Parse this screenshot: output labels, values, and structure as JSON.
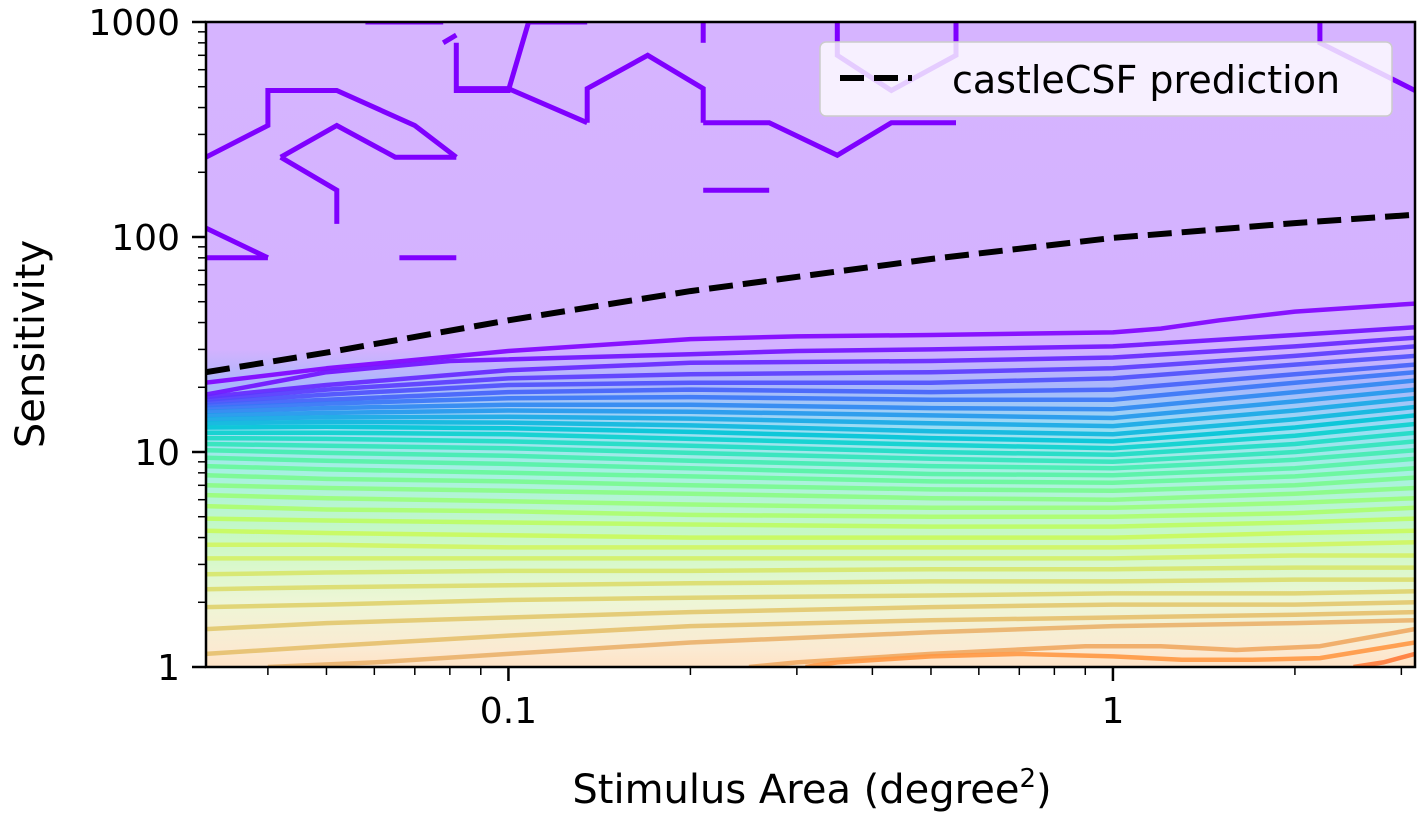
{
  "chart_data": {
    "type": "contour",
    "xlabel_main": "Stimulus Area (degree",
    "xlabel_sup": "2",
    "xlabel_close": ")",
    "ylabel": "Sensitivity",
    "xscale": "log",
    "yscale": "log",
    "xlim": [
      0.0316,
      3.16
    ],
    "ylim": [
      1,
      1000
    ],
    "x_ticks": [
      {
        "value": 0.1,
        "label": "0.1"
      },
      {
        "value": 1,
        "label": "1"
      }
    ],
    "y_ticks": [
      {
        "value": 1,
        "label": "1"
      },
      {
        "value": 10,
        "label": "10"
      },
      {
        "value": 100,
        "label": "100"
      },
      {
        "value": 1000,
        "label": "1000"
      }
    ],
    "legend": {
      "position": "top-right",
      "entries": [
        {
          "label": "castleCSF prediction",
          "style": "dashed",
          "color": "#000000"
        }
      ]
    },
    "colormap": "rainbow",
    "background_fill": [
      {
        "y": 1000,
        "color": "#d6b4ff"
      },
      {
        "y": 30,
        "color": "#d3b2ff"
      },
      {
        "y": 20,
        "color": "#a8b7fb"
      },
      {
        "y": 13,
        "color": "#99ddf4"
      },
      {
        "y": 8,
        "color": "#a6f1e1"
      },
      {
        "y": 4,
        "color": "#c9f9c3"
      },
      {
        "y": 2,
        "color": "#eef6d6"
      },
      {
        "y": 1.2,
        "color": "#fbead2"
      },
      {
        "y": 1,
        "color": "#ffe3c6"
      }
    ],
    "series": [
      {
        "name": "castleCSF prediction",
        "style": "dashed",
        "x": [
          0.0316,
          0.05,
          0.1,
          0.2,
          0.5,
          1,
          2,
          3.16
        ],
        "y": [
          23.5,
          29,
          41,
          56,
          79,
          99,
          116,
          127
        ]
      }
    ],
    "contours": [
      {
        "level": 1,
        "color": "#7f00ff",
        "x": [
          0.0316,
          0.05,
          0.1,
          0.2,
          0.3,
          0.5,
          1,
          1.2,
          1.5,
          2,
          3.16
        ],
        "y": [
          21,
          24.5,
          29.5,
          33.5,
          34.5,
          35,
          36,
          37.5,
          41,
          45,
          49
        ]
      },
      {
        "level": 2,
        "color": "#7010ff",
        "x": [
          0.0316,
          0.05,
          0.08,
          0.2,
          0.3,
          0.5,
          1,
          2,
          3.16
        ],
        "y": [
          18.5,
          23.5,
          26.5,
          28.5,
          29.5,
          30,
          31,
          35,
          38
        ]
      },
      {
        "level": 3,
        "color": "#6526ff",
        "x": [
          0.0316,
          0.05,
          0.1,
          0.2,
          0.5,
          1,
          2,
          3.16
        ],
        "y": [
          18,
          20.5,
          24,
          26,
          26.5,
          27.5,
          31,
          34
        ]
      },
      {
        "level": 4,
        "color": "#5a3bfe",
        "x": [
          0.0316,
          0.05,
          0.1,
          0.2,
          0.5,
          1,
          2,
          3.16
        ],
        "y": [
          17.5,
          19.5,
          22,
          23,
          23.5,
          24.5,
          28,
          31
        ]
      },
      {
        "level": 5,
        "color": "#4e4ffc",
        "x": [
          0.0316,
          0.05,
          0.1,
          0.2,
          0.5,
          1,
          2,
          3.16
        ],
        "y": [
          17,
          18.5,
          20.5,
          21,
          21,
          22,
          25.5,
          28
        ]
      },
      {
        "level": 6,
        "color": "#4462fa",
        "x": [
          0.0316,
          0.05,
          0.1,
          0.2,
          0.5,
          1,
          2,
          3.16
        ],
        "y": [
          16.5,
          17.5,
          19,
          19.5,
          19,
          19.5,
          23,
          25.5
        ]
      },
      {
        "level": 7,
        "color": "#3875f6",
        "x": [
          0.0316,
          0.05,
          0.1,
          0.2,
          0.5,
          1,
          2,
          3.16
        ],
        "y": [
          16,
          16.8,
          17.8,
          18,
          17.5,
          17.5,
          21,
          23.5
        ]
      },
      {
        "level": 8,
        "color": "#2d87f1",
        "x": [
          0.0316,
          0.05,
          0.1,
          0.2,
          0.5,
          1,
          2,
          3.16
        ],
        "y": [
          15.4,
          16,
          16.6,
          16.6,
          16,
          15.8,
          19,
          21.5
        ]
      },
      {
        "level": 9,
        "color": "#2298ec",
        "x": [
          0.0316,
          0.05,
          0.1,
          0.2,
          0.5,
          1,
          2,
          3.16
        ],
        "y": [
          14.8,
          15.2,
          15.6,
          15.4,
          14.8,
          14.4,
          17.2,
          19.5
        ]
      },
      {
        "level": 10,
        "color": "#17a8e5",
        "x": [
          0.0316,
          0.05,
          0.1,
          0.2,
          0.5,
          1,
          2,
          3.16
        ],
        "y": [
          14.2,
          14.5,
          14.6,
          14.3,
          13.6,
          13.2,
          15.6,
          17.8
        ]
      },
      {
        "level": 11,
        "color": "#0cb7de",
        "x": [
          0.0316,
          0.05,
          0.1,
          0.2,
          0.5,
          1,
          2,
          3.16
        ],
        "y": [
          13.6,
          13.8,
          13.7,
          13.3,
          12.5,
          12.1,
          14.2,
          16.2
        ]
      },
      {
        "level": 12,
        "color": "#00c4d6",
        "x": [
          0.0316,
          0.05,
          0.1,
          0.2,
          0.5,
          1,
          2,
          3.16
        ],
        "y": [
          13,
          13.1,
          12.9,
          12.4,
          11.6,
          11.2,
          13,
          14.8
        ]
      },
      {
        "level": 13,
        "color": "#0ad0ce",
        "x": [
          0.0316,
          0.05,
          0.1,
          0.2,
          0.5,
          1,
          2,
          3.16
        ],
        "y": [
          12.3,
          12.3,
          12.1,
          11.5,
          10.8,
          10.4,
          11.9,
          13.5
        ]
      },
      {
        "level": 14,
        "color": "#1ddbc4",
        "x": [
          0.0316,
          0.05,
          0.1,
          0.2,
          0.5,
          1,
          2,
          3.16
        ],
        "y": [
          11.6,
          11.5,
          11.2,
          10.7,
          10,
          9.7,
          10.9,
          12.3
        ]
      },
      {
        "level": 15,
        "color": "#30e4ba",
        "x": [
          0.0316,
          0.05,
          0.1,
          0.2,
          0.5,
          1,
          2,
          3.16
        ],
        "y": [
          10.9,
          10.7,
          10.4,
          9.9,
          9.3,
          9,
          10,
          11.2
        ]
      },
      {
        "level": 16,
        "color": "#42ecb0",
        "x": [
          0.0316,
          0.05,
          0.1,
          0.2,
          0.5,
          1,
          2,
          3.16
        ],
        "y": [
          10.2,
          9.9,
          9.6,
          9.1,
          8.6,
          8.4,
          9.2,
          10.2
        ]
      },
      {
        "level": 17,
        "color": "#55f2a5",
        "x": [
          0.0316,
          0.05,
          0.1,
          0.2,
          0.5,
          1,
          2,
          3.16
        ],
        "y": [
          9.4,
          9.1,
          8.8,
          8.4,
          7.9,
          7.8,
          8.4,
          9.3
        ]
      },
      {
        "level": 18,
        "color": "#67f79a",
        "x": [
          0.0316,
          0.05,
          0.1,
          0.2,
          0.5,
          1,
          2,
          3.16
        ],
        "y": [
          8.6,
          8.3,
          8,
          7.7,
          7.3,
          7.2,
          7.7,
          8.4
        ]
      },
      {
        "level": 19,
        "color": "#79fa8f",
        "x": [
          0.0316,
          0.05,
          0.1,
          0.2,
          0.5,
          1,
          2,
          3.16
        ],
        "y": [
          7.8,
          7.5,
          7.3,
          7,
          6.7,
          6.6,
          7,
          7.6
        ]
      },
      {
        "level": 20,
        "color": "#8bfc84",
        "x": [
          0.0316,
          0.05,
          0.1,
          0.2,
          0.5,
          1,
          2,
          3.16
        ],
        "y": [
          7,
          6.8,
          6.6,
          6.4,
          6.1,
          6,
          6.4,
          6.8
        ]
      },
      {
        "level": 21,
        "color": "#9afe79",
        "x": [
          0.0316,
          0.05,
          0.1,
          0.2,
          0.5,
          1,
          2,
          3.16
        ],
        "y": [
          6.3,
          6.1,
          5.9,
          5.7,
          5.5,
          5.5,
          5.8,
          6.1
        ]
      },
      {
        "level": 22,
        "color": "#acfe6d",
        "x": [
          0.0316,
          0.05,
          0.1,
          0.2,
          0.5,
          1,
          2,
          3.16
        ],
        "y": [
          5.6,
          5.4,
          5.3,
          5.1,
          5,
          5,
          5.2,
          5.5
        ]
      },
      {
        "level": 23,
        "color": "#bcfc62",
        "x": [
          0.0316,
          0.05,
          0.1,
          0.2,
          0.5,
          1,
          2,
          3.16
        ],
        "y": [
          4.9,
          4.8,
          4.7,
          4.6,
          4.5,
          4.5,
          4.7,
          4.9
        ]
      },
      {
        "level": 24,
        "color": "#c9f95b",
        "x": [
          0.0316,
          0.05,
          0.1,
          0.2,
          0.5,
          1,
          2,
          3.16
        ],
        "y": [
          4.3,
          4.2,
          4.1,
          4,
          4,
          4,
          4.2,
          4.3
        ]
      },
      {
        "level": 25,
        "color": "#d0f560",
        "x": [
          0.0316,
          0.05,
          0.1,
          0.2,
          0.5,
          1,
          2,
          3.16
        ],
        "y": [
          3.7,
          3.7,
          3.6,
          3.6,
          3.6,
          3.6,
          3.7,
          3.8
        ]
      },
      {
        "level": 26,
        "color": "#d4ef66",
        "x": [
          0.0316,
          0.05,
          0.1,
          0.2,
          0.5,
          1,
          2,
          3.16
        ],
        "y": [
          3.2,
          3.2,
          3.2,
          3.2,
          3.2,
          3.2,
          3.3,
          3.3
        ]
      },
      {
        "level": 27,
        "color": "#d7e56a",
        "x": [
          0.0316,
          0.05,
          0.1,
          0.2,
          0.5,
          1,
          2,
          3.16
        ],
        "y": [
          2.7,
          2.75,
          2.8,
          2.8,
          2.85,
          2.85,
          2.9,
          2.9
        ]
      },
      {
        "level": 28,
        "color": "#dbdc6c",
        "x": [
          0.0316,
          0.05,
          0.1,
          0.2,
          0.5,
          1,
          2,
          3.16
        ],
        "y": [
          2.3,
          2.35,
          2.4,
          2.45,
          2.5,
          2.5,
          2.55,
          2.55
        ]
      },
      {
        "level": 29,
        "color": "#dfd26d",
        "x": [
          0.0316,
          0.05,
          0.1,
          0.2,
          0.5,
          1,
          2,
          3.16
        ],
        "y": [
          1.9,
          1.95,
          2.05,
          2.1,
          2.15,
          2.2,
          2.2,
          2.25
        ]
      },
      {
        "level": 30,
        "color": "#e2c86e",
        "x": [
          0.0316,
          0.05,
          0.1,
          0.2,
          0.5,
          1,
          2,
          3.16
        ],
        "y": [
          1.5,
          1.6,
          1.7,
          1.8,
          1.9,
          1.95,
          1.95,
          2
        ]
      },
      {
        "level": 31,
        "color": "#e6c06d",
        "x": [
          0.0316,
          0.05,
          0.1,
          0.2,
          0.5,
          1,
          2,
          3.16
        ],
        "y": [
          1.15,
          1.25,
          1.4,
          1.55,
          1.65,
          1.7,
          1.75,
          1.8
        ]
      },
      {
        "level": 32,
        "color": "#eab16c",
        "x": [
          0.04,
          0.06,
          0.1,
          0.2,
          0.5,
          1,
          2,
          3.16
        ],
        "y": [
          1,
          1.05,
          1.15,
          1.3,
          1.45,
          1.55,
          1.6,
          1.65
        ]
      },
      {
        "level": 33,
        "color": "#f0a862",
        "x": [
          0.25,
          0.3,
          0.5,
          0.9,
          1.2,
          1.6,
          2.2,
          3.16
        ],
        "y": [
          1,
          1.05,
          1.15,
          1.25,
          1.25,
          1.2,
          1.25,
          1.5
        ]
      },
      {
        "level": 34,
        "color": "#ff9844",
        "x": [
          0.31,
          0.35,
          0.5,
          0.7,
          1,
          1.3,
          1.7,
          2.2,
          3.16
        ],
        "y": [
          1,
          1.05,
          1.12,
          1.15,
          1.12,
          1.08,
          1.08,
          1.1,
          1.3
        ]
      },
      {
        "level": 35,
        "color": "#ff7a3a",
        "x": [
          2.5,
          2.8,
          3.16
        ],
        "y": [
          1,
          1.05,
          1.15
        ]
      }
    ],
    "noise_contours": [
      {
        "color": "#7f00ff",
        "x": [
          0.0316,
          0.04,
          0.04,
          0.052,
          0.07,
          0.082
        ],
        "y": [
          235,
          330,
          480,
          480,
          330,
          235
        ]
      },
      {
        "color": "#7f00ff",
        "x": [
          0.042,
          0.052,
          0.065,
          0.082
        ],
        "y": [
          235,
          330,
          235,
          235
        ]
      },
      {
        "color": "#7f00ff",
        "x": [
          0.042,
          0.052,
          0.052
        ],
        "y": [
          235,
          165,
          115
        ]
      },
      {
        "color": "#7f00ff",
        "x": [
          0.0316,
          0.04
        ],
        "y": [
          110,
          80
        ]
      },
      {
        "color": "#7f00ff",
        "x": [
          0.0316,
          0.04
        ],
        "y": [
          80,
          80
        ]
      },
      {
        "color": "#7f00ff",
        "x": [
          0.066,
          0.082
        ],
        "y": [
          80,
          80
        ]
      },
      {
        "color": "#7f00ff",
        "x": [
          0.058,
          0.078
        ],
        "y": [
          1000,
          1000
        ]
      },
      {
        "color": "#7f00ff",
        "x": [
          0.078,
          0.082
        ],
        "y": [
          800,
          870
        ]
      },
      {
        "color": "#7f00ff",
        "x": [
          0.082,
          0.082,
          0.1,
          0.108,
          0.135
        ],
        "y": [
          800,
          480,
          480,
          1000,
          1000
        ]
      },
      {
        "color": "#7f00ff",
        "x": [
          0.082,
          0.1,
          0.135
        ],
        "y": [
          490,
          490,
          340
        ]
      },
      {
        "color": "#7f00ff",
        "x": [
          0.135,
          0.135,
          0.17,
          0.21,
          0.21
        ],
        "y": [
          340,
          490,
          700,
          490,
          340
        ]
      },
      {
        "color": "#7f00ff",
        "x": [
          0.21,
          0.27,
          0.35,
          0.43,
          0.55
        ],
        "y": [
          340,
          340,
          240,
          340,
          340
        ]
      },
      {
        "color": "#7f00ff",
        "x": [
          0.21,
          0.27
        ],
        "y": [
          165,
          165
        ]
      },
      {
        "color": "#7f00ff",
        "x": [
          0.21,
          0.21,
          0.21
        ],
        "y": [
          1000,
          900,
          800
        ]
      },
      {
        "color": "#7f00ff",
        "x": [
          0.35,
          0.35,
          0.43,
          0.55,
          0.55
        ],
        "y": [
          1000,
          700,
          480,
          700,
          1000
        ]
      },
      {
        "color": "#7f00ff",
        "x": [
          2.2,
          2.2,
          3.16
        ],
        "y": [
          1000,
          800,
          480
        ]
      }
    ]
  }
}
